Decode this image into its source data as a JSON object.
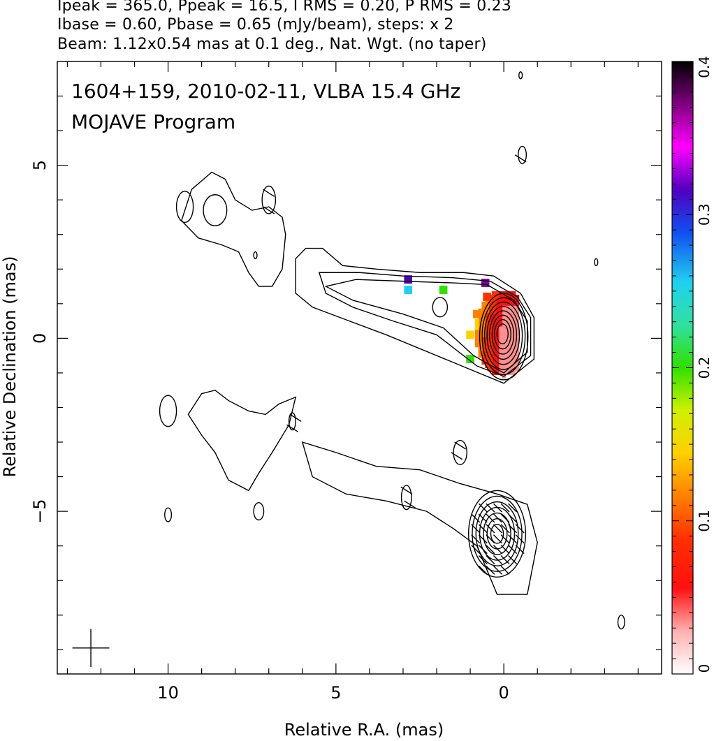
{
  "header": {
    "line1": "Ipeak = 365.0, Ppeak = 16.5, I RMS = 0.20, P RMS = 0.23",
    "line2": "Ibase = 0.60, Pbase = 0.65 (mJy/beam), steps: x 2",
    "line3": "Beam: 1.12x0.54 mas at 0.1 deg., Nat. Wgt. (no taper)"
  },
  "chart_data": {
    "type": "heatmap",
    "title": "1604+159, 2010-02-11, VLBA 15.4 GHz",
    "subtitle": "MOJAVE Program",
    "xlabel": "Relative R.A. (mas)",
    "ylabel": "Relative Declination (mas)",
    "xlim": [
      13.3,
      -4.7
    ],
    "ylim": [
      -9.7,
      8.0
    ],
    "x_ticks": [
      10,
      5,
      0
    ],
    "y_ticks": [
      5,
      0,
      -5
    ],
    "x_tick_labels": [
      "10",
      "5",
      "0"
    ],
    "y_tick_labels": [
      "5",
      "0",
      "−5"
    ],
    "colorbar": {
      "min": 0,
      "max": 0.4,
      "ticks": [
        0,
        0.1,
        0.2,
        0.3,
        0.4
      ],
      "tick_labels": [
        "0",
        "0.1",
        "0.2",
        "0.3",
        "0.4"
      ]
    },
    "upper_source": {
      "center": [
        0,
        0
      ],
      "contour_count": 10
    },
    "lower_source": {
      "center": [
        0.2,
        -5.6
      ],
      "contour_count": 9
    },
    "fractional_polarization_patches": [
      {
        "x": 0.3,
        "y": 0.6,
        "value": 0.06
      },
      {
        "x": 0.5,
        "y": 1.2,
        "value": 0.11
      },
      {
        "x": 0.8,
        "y": 0.7,
        "value": 0.13
      },
      {
        "x": 1.0,
        "y": 0.1,
        "value": 0.17
      },
      {
        "x": 1.0,
        "y": -0.6,
        "value": 0.21
      },
      {
        "x": 2.85,
        "y": 1.4,
        "value": 0.28
      },
      {
        "x": 1.8,
        "y": 1.4,
        "value": 0.23
      },
      {
        "x": 0.55,
        "y": 1.6,
        "value": 0.36
      },
      {
        "x": 2.85,
        "y": 1.7,
        "value": 0.33
      }
    ]
  }
}
